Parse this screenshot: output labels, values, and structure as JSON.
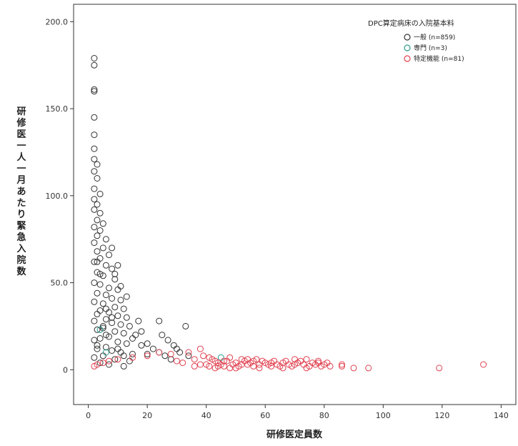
{
  "chart_data": {
    "type": "scatter",
    "xlabel": "研修医定員数",
    "ylabel": "研修医一人一月あたり緊急入院数",
    "xlim": [
      -5,
      145
    ],
    "ylim": [
      -20,
      210
    ],
    "x_ticks": [
      0,
      20,
      40,
      60,
      80,
      100,
      120,
      140
    ],
    "y_ticks": [
      0,
      50.0,
      100.0,
      150.0,
      200.0
    ],
    "x_tick_labels": [
      "0",
      "20",
      "40",
      "60",
      "80",
      "100",
      "120",
      "140"
    ],
    "y_tick_labels": [
      "0",
      "50.0",
      "100.0",
      "150.0",
      "200.0"
    ],
    "grid": false,
    "legend": {
      "title": "DPC算定病床の入院基本料",
      "position": "top-right",
      "entries": [
        "一般 (n=859)",
        "専門 (n=3)",
        "特定機能 (n=81)"
      ]
    },
    "series": [
      {
        "name": "一般 (n=859)",
        "color": "#333333",
        "points": [
          [
            2,
            179
          ],
          [
            2,
            175
          ],
          [
            2,
            161
          ],
          [
            2,
            160
          ],
          [
            2,
            145
          ],
          [
            2,
            135
          ],
          [
            2,
            127
          ],
          [
            2,
            121
          ],
          [
            3,
            118
          ],
          [
            2,
            114
          ],
          [
            3,
            110
          ],
          [
            2,
            104
          ],
          [
            4,
            101
          ],
          [
            2,
            98
          ],
          [
            3,
            95
          ],
          [
            2,
            92
          ],
          [
            4,
            90
          ],
          [
            3,
            86
          ],
          [
            5,
            84
          ],
          [
            2,
            82
          ],
          [
            4,
            80
          ],
          [
            3,
            77
          ],
          [
            6,
            75
          ],
          [
            2,
            73
          ],
          [
            5,
            70
          ],
          [
            3,
            68
          ],
          [
            7,
            66
          ],
          [
            4,
            64
          ],
          [
            2,
            62
          ],
          [
            6,
            60
          ],
          [
            8,
            58
          ],
          [
            3,
            56
          ],
          [
            5,
            54
          ],
          [
            9,
            52
          ],
          [
            2,
            50
          ],
          [
            4,
            49
          ],
          [
            7,
            47
          ],
          [
            10,
            46
          ],
          [
            3,
            44
          ],
          [
            6,
            43
          ],
          [
            8,
            41
          ],
          [
            11,
            40
          ],
          [
            2,
            39
          ],
          [
            5,
            38
          ],
          [
            9,
            36
          ],
          [
            12,
            35
          ],
          [
            4,
            34
          ],
          [
            7,
            33
          ],
          [
            3,
            32
          ],
          [
            10,
            31
          ],
          [
            13,
            30
          ],
          [
            6,
            29
          ],
          [
            2,
            28
          ],
          [
            8,
            27
          ],
          [
            11,
            26
          ],
          [
            14,
            25
          ],
          [
            5,
            24
          ],
          [
            3,
            23
          ],
          [
            9,
            22
          ],
          [
            12,
            21
          ],
          [
            16,
            20
          ],
          [
            7,
            19
          ],
          [
            4,
            18
          ],
          [
            2,
            17
          ],
          [
            10,
            16
          ],
          [
            13,
            15
          ],
          [
            18,
            14
          ],
          [
            6,
            13
          ],
          [
            3,
            12
          ],
          [
            8,
            11
          ],
          [
            11,
            10
          ],
          [
            15,
            9
          ],
          [
            20,
            9
          ],
          [
            5,
            8
          ],
          [
            2,
            7
          ],
          [
            9,
            6
          ],
          [
            14,
            5
          ],
          [
            4,
            4
          ],
          [
            7,
            3
          ],
          [
            12,
            2
          ],
          [
            3,
            14
          ],
          [
            5,
            25
          ],
          [
            6,
            35
          ],
          [
            4,
            55
          ],
          [
            3,
            62
          ],
          [
            8,
            30
          ],
          [
            6,
            20
          ],
          [
            10,
            12
          ],
          [
            12,
            8
          ],
          [
            15,
            18
          ],
          [
            17,
            28
          ],
          [
            18,
            22
          ],
          [
            20,
            15
          ],
          [
            22,
            12
          ],
          [
            24,
            10
          ],
          [
            26,
            8
          ],
          [
            28,
            6
          ],
          [
            25,
            20
          ],
          [
            30,
            12
          ],
          [
            24,
            28
          ],
          [
            33,
            25
          ],
          [
            27,
            17
          ],
          [
            31,
            10
          ],
          [
            34,
            8
          ],
          [
            29,
            14
          ],
          [
            9,
            55
          ],
          [
            10,
            60
          ],
          [
            11,
            48
          ],
          [
            13,
            42
          ],
          [
            8,
            70
          ]
        ]
      },
      {
        "name": "専門 (n=3)",
        "color": "#2a9d8f",
        "points": [
          [
            4,
            23
          ],
          [
            6,
            10
          ],
          [
            45,
            7
          ]
        ]
      },
      {
        "name": "特定機能 (n=81)",
        "color": "#e0404f",
        "points": [
          [
            2,
            2
          ],
          [
            3,
            3
          ],
          [
            5,
            4
          ],
          [
            7,
            5
          ],
          [
            10,
            6
          ],
          [
            15,
            7
          ],
          [
            20,
            8
          ],
          [
            24,
            10
          ],
          [
            28,
            9
          ],
          [
            30,
            5
          ],
          [
            32,
            4
          ],
          [
            34,
            10
          ],
          [
            36,
            6
          ],
          [
            38,
            12
          ],
          [
            40,
            3
          ],
          [
            41,
            2
          ],
          [
            42,
            6
          ],
          [
            43,
            5
          ],
          [
            44,
            4
          ],
          [
            45,
            3
          ],
          [
            46,
            2
          ],
          [
            47,
            5
          ],
          [
            48,
            7
          ],
          [
            49,
            3
          ],
          [
            50,
            4
          ],
          [
            51,
            2
          ],
          [
            52,
            6
          ],
          [
            53,
            5
          ],
          [
            54,
            3
          ],
          [
            55,
            4
          ],
          [
            56,
            2
          ],
          [
            57,
            6
          ],
          [
            58,
            3
          ],
          [
            59,
            5
          ],
          [
            60,
            4
          ],
          [
            61,
            3
          ],
          [
            62,
            2
          ],
          [
            63,
            5
          ],
          [
            64,
            3
          ],
          [
            65,
            2
          ],
          [
            66,
            4
          ],
          [
            67,
            5
          ],
          [
            68,
            3
          ],
          [
            69,
            2
          ],
          [
            70,
            6
          ],
          [
            71,
            4
          ],
          [
            72,
            5
          ],
          [
            73,
            3
          ],
          [
            74,
            6
          ],
          [
            75,
            2
          ],
          [
            76,
            4
          ],
          [
            77,
            3
          ],
          [
            78,
            5
          ],
          [
            79,
            2
          ],
          [
            80,
            3
          ],
          [
            81,
            4
          ],
          [
            86,
            2
          ],
          [
            86,
            3
          ],
          [
            90,
            1
          ],
          [
            95,
            1
          ],
          [
            119,
            1
          ],
          [
            134,
            3
          ],
          [
            41,
            7
          ],
          [
            43,
            1
          ],
          [
            46,
            5
          ],
          [
            50,
            1
          ],
          [
            54,
            6
          ],
          [
            58,
            1
          ],
          [
            62,
            4
          ],
          [
            66,
            1
          ],
          [
            70,
            3
          ],
          [
            74,
            1
          ],
          [
            78,
            4
          ],
          [
            82,
            2
          ],
          [
            38,
            3
          ],
          [
            36,
            2
          ],
          [
            39,
            8
          ],
          [
            44,
            2
          ],
          [
            48,
            1
          ],
          [
            52,
            3
          ],
          [
            56,
            5
          ]
        ]
      }
    ]
  }
}
